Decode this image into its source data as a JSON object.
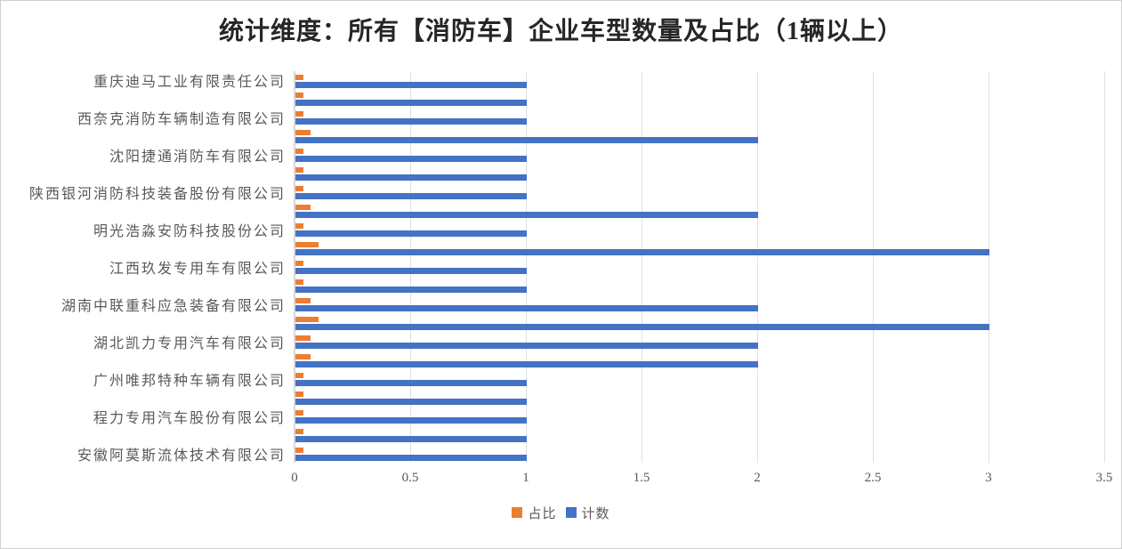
{
  "title": "统计维度：所有【消防车】企业车型数量及占比（1辆以上）",
  "legend": {
    "ratio_label": "占比",
    "count_label": "计数"
  },
  "colors": {
    "ratio_bar": "#ED7D31",
    "count_bar": "#4472C4",
    "gridline": "#E0E0E0",
    "axis_line": "#D9D9D9",
    "axis_text": "#595959",
    "title_text": "#262626"
  },
  "chart_data": {
    "type": "bar",
    "orientation": "horizontal",
    "title": "统计维度：所有【消防车】企业车型数量及占比（1辆以上）",
    "categories_order": "top-to-bottom",
    "categories": [
      "重庆迪马工业有限责任公司",
      "",
      "西奈克消防车辆制造有限公司",
      "",
      "沈阳捷通消防车有限公司",
      "",
      "陕西银河消防科技装备股份有限公司",
      "",
      "明光浩淼安防科技股份公司",
      "",
      "江西玖发专用车有限公司",
      "",
      "湖南中联重科应急装备有限公司",
      "",
      "湖北凯力专用汽车有限公司",
      "",
      "广州唯邦特种车辆有限公司",
      "",
      "程力专用汽车股份有限公司",
      "",
      "安徽阿莫斯流体技术有限公司"
    ],
    "series": [
      {
        "name": "占比",
        "color": "#ED7D31",
        "values": [
          0.0333,
          0.0333,
          0.0333,
          0.0667,
          0.0333,
          0.0333,
          0.0333,
          0.0667,
          0.0333,
          0.1,
          0.0333,
          0.0333,
          0.0667,
          0.1,
          0.0667,
          0.0667,
          0.0333,
          0.0333,
          0.0333,
          0.0333,
          0.0333
        ]
      },
      {
        "name": "计数",
        "color": "#4472C4",
        "values": [
          1,
          1,
          1,
          2,
          1,
          1,
          1,
          2,
          1,
          3,
          1,
          1,
          2,
          3,
          2,
          2,
          1,
          1,
          1,
          1,
          1
        ]
      }
    ],
    "xlim": [
      0,
      3.5
    ],
    "x_ticks": [
      "0",
      "0.5",
      "1",
      "1.5",
      "2",
      "2.5",
      "3",
      "3.5"
    ],
    "grid": true,
    "legend_position": "bottom",
    "axis_label_display": "every-other-category-label-hidden"
  }
}
